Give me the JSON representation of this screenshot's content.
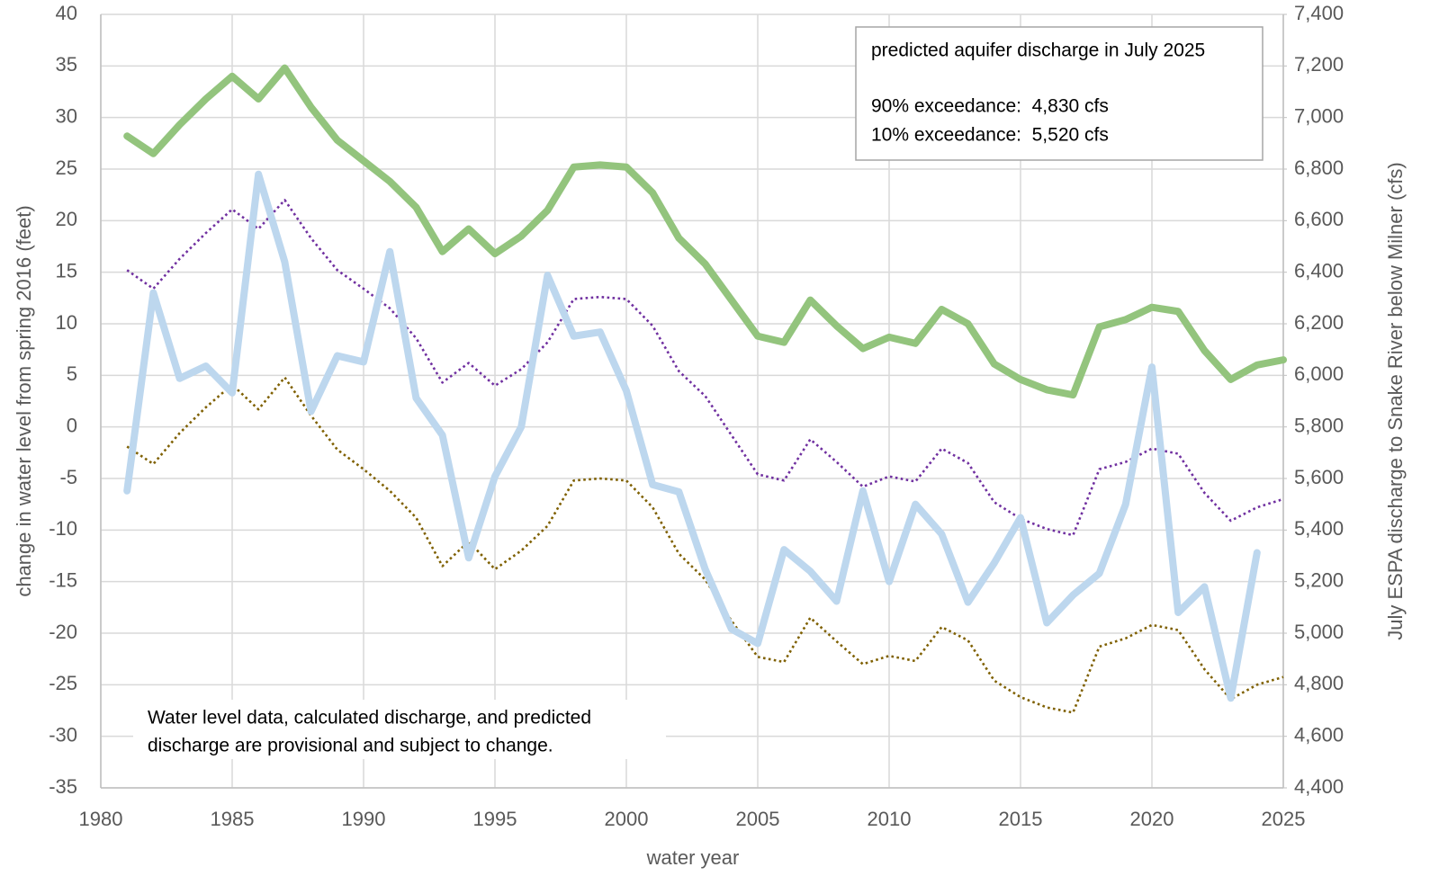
{
  "chart_data": {
    "type": "line",
    "xlabel": "water year",
    "ylabel": "change in water level from spring 2016 (feet)",
    "y2label": "July ESPA discharge to Snake River below Milner (cfs)",
    "annotation": [
      "predicted aquifer discharge in July 2025",
      "90% exceedance:  4,830 cfs",
      "10% exceedance:  5,520 cfs"
    ],
    "note": [
      "Water level data, calculated discharge, and predicted",
      "discharge are provisional and subject to change."
    ],
    "grid": true,
    "x": [
      1981,
      1982,
      1983,
      1984,
      1985,
      1986,
      1987,
      1988,
      1989,
      1990,
      1991,
      1992,
      1993,
      1994,
      1995,
      1996,
      1997,
      1998,
      1999,
      2000,
      2001,
      2002,
      2003,
      2004,
      2005,
      2006,
      2007,
      2008,
      2009,
      2010,
      2011,
      2012,
      2013,
      2014,
      2015,
      2016,
      2017,
      2018,
      2019,
      2020,
      2021,
      2022,
      2023,
      2024,
      2025
    ],
    "xlim": [
      1980,
      2025
    ],
    "xticks": [
      1980,
      1985,
      1990,
      1995,
      2000,
      2005,
      2010,
      2015,
      2020,
      2025
    ],
    "ylim": [
      -35,
      40
    ],
    "yticks": [
      -35,
      -30,
      -25,
      -20,
      -15,
      -10,
      -5,
      0,
      5,
      10,
      15,
      20,
      25,
      30,
      35,
      40
    ],
    "y2lim": [
      4400,
      7400
    ],
    "y2ticks": [
      {
        "value": 4400,
        "label": "4,400"
      },
      {
        "value": 4600,
        "label": "4,600"
      },
      {
        "value": 4800,
        "label": "4,800"
      },
      {
        "value": 5000,
        "label": "5,000"
      },
      {
        "value": 5200,
        "label": "5,200"
      },
      {
        "value": 5400,
        "label": "5,400"
      },
      {
        "value": 5600,
        "label": "5,600"
      },
      {
        "value": 5800,
        "label": "5,800"
      },
      {
        "value": 6000,
        "label": "6,000"
      },
      {
        "value": 6200,
        "label": "6,200"
      },
      {
        "value": 6400,
        "label": "6,400"
      },
      {
        "value": 6600,
        "label": "6,600"
      },
      {
        "value": 6800,
        "label": "6,800"
      },
      {
        "value": 7000,
        "label": "7,000"
      },
      {
        "value": 7200,
        "label": "7,200"
      },
      {
        "value": 7400,
        "label": "7,400"
      }
    ],
    "series": [
      {
        "color": "#7f6000",
        "style": "dotted",
        "axis": "y2",
        "values": [
          5724,
          5656,
          5776,
          5876,
          5964,
          5868,
          5992,
          5844,
          5712,
          5636,
          5552,
          5448,
          5260,
          5356,
          5248,
          5320,
          5416,
          5592,
          5600,
          5592,
          5488,
          5308,
          5208,
          5048,
          4908,
          4888,
          5060,
          4968,
          4880,
          4912,
          4892,
          5024,
          4972,
          4816,
          4752,
          4712,
          4692,
          4948,
          4980,
          5032,
          5012,
          4860,
          4744,
          4800,
          4830
        ]
      },
      {
        "color": "#7030a0",
        "style": "dotted",
        "axis": "y2",
        "values": [
          6408,
          6336,
          6452,
          6552,
          6644,
          6568,
          6680,
          6532,
          6408,
          6336,
          6260,
          6144,
          5972,
          6048,
          5960,
          6024,
          6128,
          6296,
          6304,
          6296,
          6192,
          6016,
          5920,
          5768,
          5616,
          5592,
          5752,
          5664,
          5568,
          5608,
          5588,
          5716,
          5660,
          5508,
          5444,
          5404,
          5380,
          5636,
          5664,
          5716,
          5696,
          5544,
          5436,
          5488,
          5520
        ]
      },
      {
        "color": "#93c47d",
        "style": "solid",
        "axis": "y2",
        "values": [
          6928,
          6860,
          6972,
          7072,
          7160,
          7072,
          7192,
          7040,
          6912,
          6832,
          6752,
          6652,
          6480,
          6568,
          6472,
          6540,
          6640,
          6808,
          6816,
          6808,
          6708,
          6532,
          6432,
          6292,
          6152,
          6128,
          6292,
          6192,
          6104,
          6148,
          6124,
          6256,
          6200,
          6044,
          5984,
          5944,
          5924,
          6188,
          6216,
          6264,
          6248,
          6096,
          5984,
          6040,
          6060
        ]
      },
      {
        "color": "#bdd7ee",
        "style": "solid",
        "values": [
          -6.2,
          13,
          4.7,
          5.9,
          3.3,
          24.5,
          16,
          1.5,
          6.9,
          6.3,
          17,
          2.8,
          -0.8,
          -12.7,
          -4.8,
          0,
          14.7,
          8.8,
          9.2,
          3.5,
          -5.6,
          -6.3,
          -13.8,
          -19.6,
          -21,
          -11.9,
          -14,
          -16.9,
          -6.2,
          -15,
          -7.5,
          -10.4,
          -17,
          -13.2,
          -8.8,
          -19,
          -16.3,
          -14.2,
          -7.5,
          5.8,
          -18,
          -15.5,
          -26.3,
          -12.2,
          null
        ]
      }
    ]
  }
}
